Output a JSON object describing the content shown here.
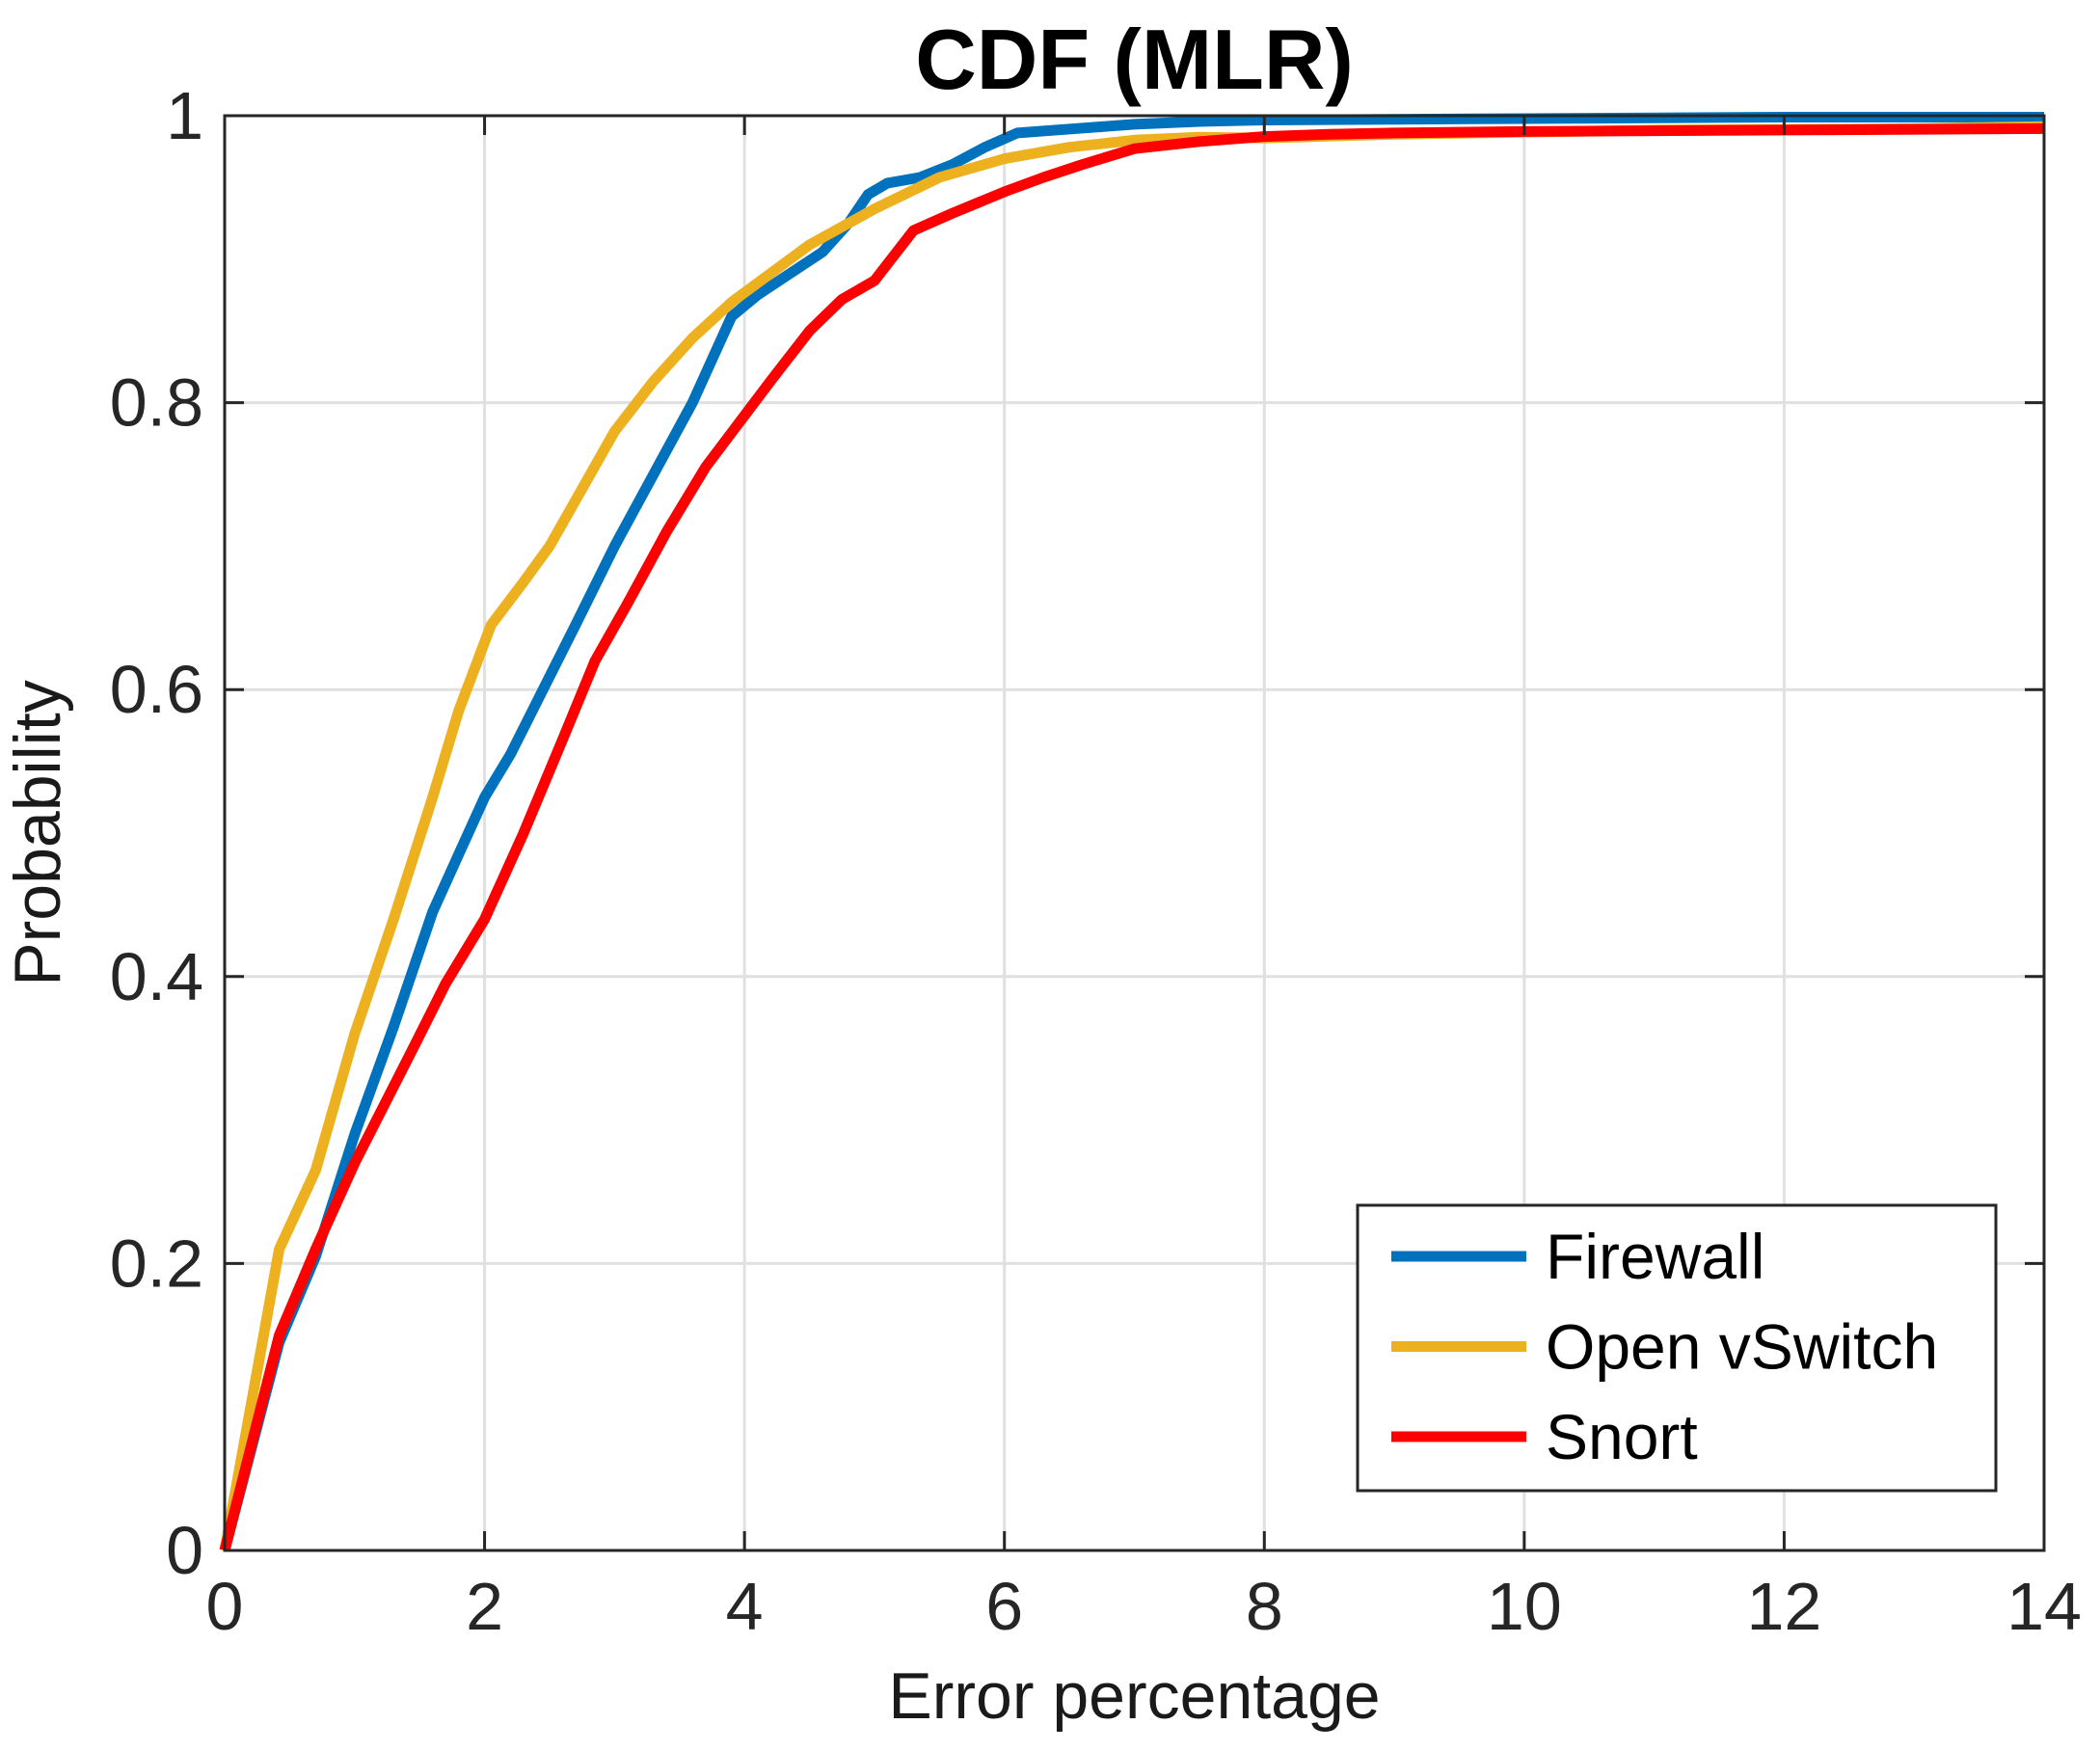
{
  "title": "CDF (MLR)",
  "colors": {
    "firewall": "#0072BD",
    "open_vswitch": "#EDB120",
    "snort": "#FF0000",
    "grid": "#E0E0E0",
    "axis": "#262626",
    "legend_border": "#262626",
    "background": "#FFFFFF"
  },
  "legend": {
    "entries": [
      "Firewall",
      "Open vSwitch",
      "Snort"
    ],
    "position": "lower right"
  },
  "chart_data": {
    "type": "line",
    "title": "CDF (MLR)",
    "xlabel": "Error percentage",
    "ylabel": "Probability",
    "xlim": [
      0,
      14
    ],
    "ylim": [
      0,
      1
    ],
    "grid": true,
    "legend_position": "lower right",
    "x_ticks": [
      0,
      2,
      4,
      6,
      8,
      10,
      12,
      14
    ],
    "x_tick_labels": [
      "0",
      "2",
      "4",
      "6",
      "8",
      "10",
      "12",
      "14"
    ],
    "y_ticks": [
      0,
      0.2,
      0.4,
      0.6,
      0.8,
      1
    ],
    "y_tick_labels": [
      "0",
      "0.2",
      "0.4",
      "0.6",
      "0.8",
      "1"
    ],
    "series": [
      {
        "name": "Firewall",
        "color": "#0072BD",
        "points": [
          [
            0,
            0
          ],
          [
            0.42,
            0.145
          ],
          [
            0.7,
            0.205
          ],
          [
            1,
            0.29
          ],
          [
            1.3,
            0.365
          ],
          [
            1.6,
            0.445
          ],
          [
            1.8,
            0.485
          ],
          [
            2,
            0.525
          ],
          [
            2.2,
            0.555
          ],
          [
            2.45,
            0.6
          ],
          [
            2.7,
            0.645
          ],
          [
            3,
            0.7
          ],
          [
            3.3,
            0.75
          ],
          [
            3.6,
            0.8
          ],
          [
            3.9,
            0.86
          ],
          [
            4.1,
            0.875
          ],
          [
            4.35,
            0.89
          ],
          [
            4.6,
            0.905
          ],
          [
            4.8,
            0.925
          ],
          [
            4.95,
            0.945
          ],
          [
            5.1,
            0.953
          ],
          [
            5.35,
            0.957
          ],
          [
            5.6,
            0.966
          ],
          [
            5.85,
            0.978
          ],
          [
            6.1,
            0.988
          ],
          [
            6.4,
            0.99
          ],
          [
            6.7,
            0.992
          ],
          [
            7,
            0.994
          ],
          [
            7.5,
            0.996
          ],
          [
            8,
            0.997
          ],
          [
            9,
            0.9975
          ],
          [
            10,
            0.998
          ],
          [
            11,
            0.9985
          ],
          [
            12,
            0.999
          ],
          [
            13,
            0.999
          ],
          [
            14,
            0.999
          ]
        ]
      },
      {
        "name": "Open vSwitch",
        "color": "#EDB120",
        "points": [
          [
            0,
            0
          ],
          [
            0.42,
            0.21
          ],
          [
            0.7,
            0.265
          ],
          [
            1,
            0.36
          ],
          [
            1.3,
            0.44
          ],
          [
            1.6,
            0.525
          ],
          [
            1.8,
            0.585
          ],
          [
            2.05,
            0.645
          ],
          [
            2.3,
            0.675
          ],
          [
            2.5,
            0.7
          ],
          [
            2.75,
            0.74
          ],
          [
            3,
            0.78
          ],
          [
            3.3,
            0.815
          ],
          [
            3.6,
            0.845
          ],
          [
            3.9,
            0.87
          ],
          [
            4.2,
            0.89
          ],
          [
            4.5,
            0.91
          ],
          [
            4.8,
            0.925
          ],
          [
            5,
            0.935
          ],
          [
            5.5,
            0.957
          ],
          [
            6,
            0.97
          ],
          [
            6.5,
            0.978
          ],
          [
            7,
            0.983
          ],
          [
            7.5,
            0.985
          ],
          [
            8,
            0.9845
          ],
          [
            9,
            0.987
          ],
          [
            10,
            0.9885
          ],
          [
            11,
            0.99
          ],
          [
            12,
            0.9905
          ],
          [
            13,
            0.991
          ],
          [
            14,
            0.9925
          ]
        ]
      },
      {
        "name": "Snort",
        "color": "#FF0000",
        "points": [
          [
            0,
            0
          ],
          [
            0.42,
            0.15
          ],
          [
            0.7,
            0.21
          ],
          [
            1,
            0.27
          ],
          [
            1.45,
            0.35
          ],
          [
            1.7,
            0.395
          ],
          [
            2,
            0.44
          ],
          [
            2.3,
            0.5
          ],
          [
            2.6,
            0.565
          ],
          [
            2.85,
            0.62
          ],
          [
            3.1,
            0.66
          ],
          [
            3.4,
            0.71
          ],
          [
            3.7,
            0.755
          ],
          [
            3.95,
            0.785
          ],
          [
            4.2,
            0.815
          ],
          [
            4.5,
            0.85
          ],
          [
            4.75,
            0.872
          ],
          [
            5,
            0.885
          ],
          [
            5.3,
            0.92
          ],
          [
            5.6,
            0.932
          ],
          [
            6,
            0.947
          ],
          [
            6.3,
            0.957
          ],
          [
            6.6,
            0.966
          ],
          [
            7,
            0.977
          ],
          [
            7.5,
            0.982
          ],
          [
            8,
            0.9855
          ],
          [
            8.5,
            0.987
          ],
          [
            9,
            0.988
          ],
          [
            10,
            0.989
          ],
          [
            12,
            0.99
          ],
          [
            14,
            0.991
          ]
        ]
      }
    ]
  }
}
